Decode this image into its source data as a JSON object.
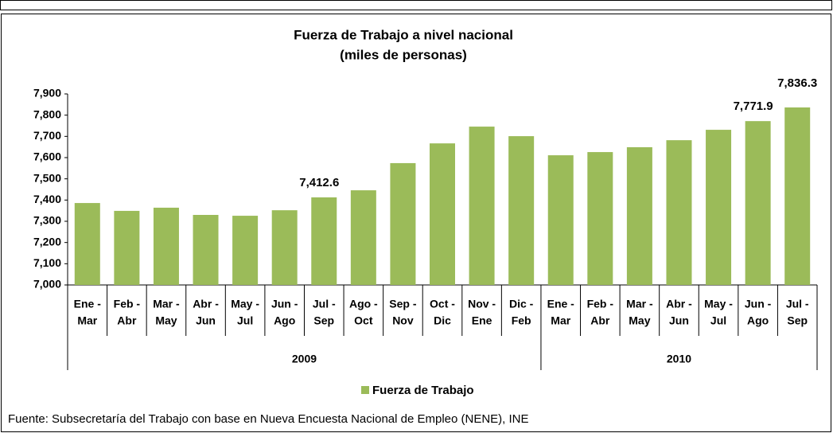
{
  "chart_data": {
    "type": "bar",
    "title": [
      "Fuerza de Trabajo a nivel nacional",
      "(miles de personas)"
    ],
    "categories": [
      [
        "Ene -",
        "Mar"
      ],
      [
        "Feb -",
        "Abr"
      ],
      [
        "Mar -",
        "May"
      ],
      [
        "Abr -",
        "Jun"
      ],
      [
        "May -",
        "Jul"
      ],
      [
        "Jun -",
        "Ago"
      ],
      [
        "Jul -",
        "Sep"
      ],
      [
        "Ago -",
        "Oct"
      ],
      [
        "Sep -",
        "Nov"
      ],
      [
        "Oct -",
        "Dic"
      ],
      [
        "Nov -",
        "Ene"
      ],
      [
        "Dic -",
        "Feb"
      ],
      [
        "Ene -",
        "Mar"
      ],
      [
        "Feb -",
        "Abr"
      ],
      [
        "Mar -",
        "May"
      ],
      [
        "Abr -",
        "Jun"
      ],
      [
        "May -",
        "Jul"
      ],
      [
        "Jun -",
        "Ago"
      ],
      [
        "Jul -",
        "Sep"
      ]
    ],
    "groups": [
      {
        "label": "2009",
        "size": 12
      },
      {
        "label": "2010",
        "size": 7
      }
    ],
    "series": [
      {
        "name": "Fuerza de Trabajo",
        "color": "#9bbb59",
        "values": [
          7386,
          7349,
          7364,
          7330,
          7326,
          7352,
          7412.6,
          7446,
          7574,
          7667,
          7746,
          7701,
          7611,
          7626,
          7649,
          7682,
          7731,
          7771.9,
          7836.3
        ],
        "value_labels": [
          null,
          null,
          null,
          null,
          null,
          null,
          "7,412.6",
          null,
          null,
          null,
          null,
          null,
          null,
          null,
          null,
          null,
          null,
          "7,771.9",
          "7,836.3"
        ]
      }
    ],
    "ylim": [
      7000,
      7900
    ],
    "yticks": [
      {
        "value": 7000,
        "label": "7,000"
      },
      {
        "value": 7100,
        "label": "7,100"
      },
      {
        "value": 7200,
        "label": "7,200"
      },
      {
        "value": 7300,
        "label": "7,300"
      },
      {
        "value": 7400,
        "label": "7,400"
      },
      {
        "value": 7500,
        "label": "7,500"
      },
      {
        "value": 7600,
        "label": "7,600"
      },
      {
        "value": 7700,
        "label": "7,700"
      },
      {
        "value": 7800,
        "label": "7,800"
      },
      {
        "value": 7900,
        "label": "7,900"
      }
    ],
    "grid": false,
    "legend": "bottom",
    "source": "Fuente: Subsecretaría del Trabajo con base en Nueva Encuesta Nacional de Empleo (NENE), INE"
  }
}
